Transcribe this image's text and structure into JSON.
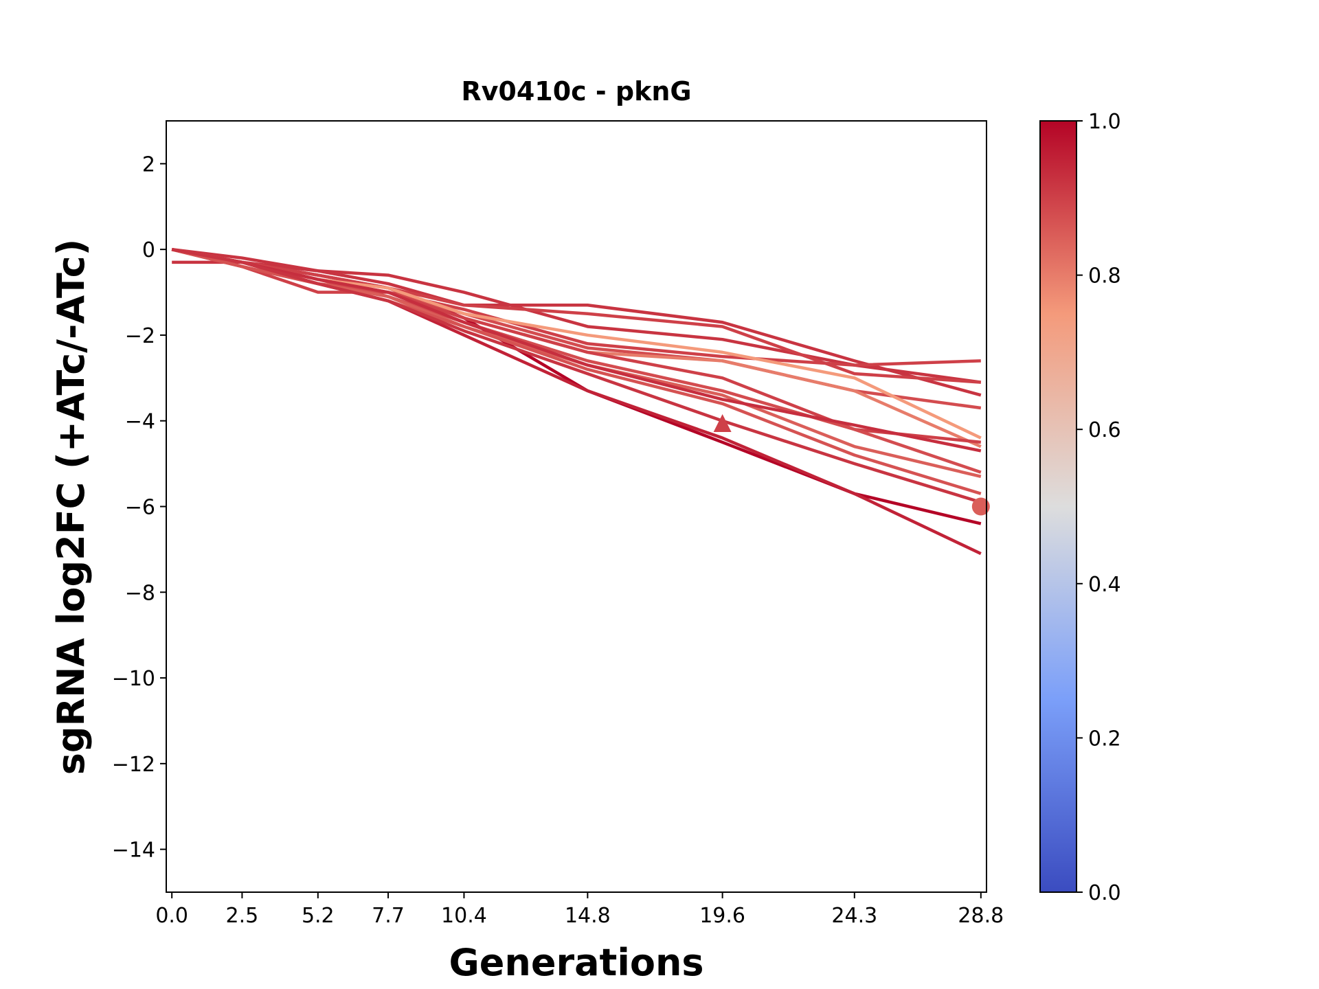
{
  "chart_data": {
    "type": "line",
    "title": "Rv0410c - pknG",
    "xlabel": "Generations",
    "ylabel": "sgRNA log2FC (+ATc/-ATc)",
    "x": [
      0.0,
      2.5,
      5.2,
      7.7,
      10.4,
      14.8,
      19.6,
      24.3,
      28.8
    ],
    "x_tick_labels": [
      "0.0",
      "2.5",
      "5.2",
      "7.7",
      "10.4",
      "14.8",
      "19.6",
      "24.3",
      "28.8"
    ],
    "xlim": [
      -0.2,
      29.0
    ],
    "ylim": [
      -15,
      3
    ],
    "y_ticks": [
      2,
      0,
      -2,
      -4,
      -6,
      -8,
      -10,
      -12,
      -14
    ],
    "y_tick_labels": [
      "2",
      "0",
      "−2",
      "−4",
      "−6",
      "−8",
      "−10",
      "−12",
      "−14"
    ],
    "grid": false,
    "colormap": "coolwarm",
    "colorbar": {
      "range": [
        0.0,
        1.0
      ],
      "tick_labels": [
        "0.0",
        "0.2",
        "0.4",
        "0.6",
        "0.8",
        "1.0"
      ],
      "ticks": [
        0,
        0.2,
        0.4,
        0.6,
        0.8,
        1.0
      ]
    },
    "series": [
      {
        "color_value": 1.0,
        "values": [
          0,
          -0.3,
          -0.6,
          -0.9,
          -1.6,
          -3.3,
          -4.5,
          -5.7,
          -6.4
        ]
      },
      {
        "color_value": 0.95,
        "values": [
          0,
          -0.4,
          -0.8,
          -1.2,
          -2.0,
          -3.3,
          -4.4,
          -5.7,
          -7.1
        ]
      },
      {
        "color_value": 0.92,
        "values": [
          -0.3,
          -0.3,
          -0.5,
          -0.6,
          -1.0,
          -1.8,
          -2.1,
          -2.7,
          -3.1
        ]
      },
      {
        "color_value": 0.92,
        "values": [
          0,
          -0.2,
          -0.5,
          -0.8,
          -1.3,
          -1.3,
          -1.7,
          -2.6,
          -3.4
        ]
      },
      {
        "color_value": 0.9,
        "values": [
          0,
          -0.3,
          -0.6,
          -0.9,
          -1.3,
          -1.5,
          -1.8,
          -2.9,
          -3.1
        ]
      },
      {
        "color_value": 0.9,
        "values": [
          0,
          -0.3,
          -0.7,
          -1.0,
          -1.4,
          -2.2,
          -2.5,
          -2.7,
          -2.6
        ]
      },
      {
        "color_value": 0.88,
        "values": [
          0,
          -0.3,
          -0.8,
          -1.0,
          -1.5,
          -2.3,
          -2.6,
          -3.3,
          -3.7
        ]
      },
      {
        "color_value": 0.75,
        "values": [
          0,
          -0.3,
          -0.7,
          -0.9,
          -1.5,
          -2.0,
          -2.4,
          -3.0,
          -4.4
        ]
      },
      {
        "color_value": 0.8,
        "values": [
          0,
          -0.3,
          -0.7,
          -1.0,
          -1.6,
          -2.4,
          -2.6,
          -3.3,
          -4.6
        ]
      },
      {
        "color_value": 0.9,
        "values": [
          0,
          -0.4,
          -1.0,
          -1.0,
          -1.6,
          -2.4,
          -3.0,
          -4.2,
          -4.5
        ]
      },
      {
        "color_value": 0.88,
        "values": [
          0,
          -0.3,
          -0.7,
          -1.1,
          -1.7,
          -2.6,
          -3.3,
          -4.2,
          -5.2
        ]
      },
      {
        "color_value": 0.85,
        "values": [
          0,
          -0.4,
          -0.8,
          -1.1,
          -1.8,
          -2.7,
          -3.4,
          -4.6,
          -5.3
        ]
      },
      {
        "color_value": 0.87,
        "values": [
          0,
          -0.4,
          -0.8,
          -1.2,
          -1.8,
          -2.8,
          -3.6,
          -4.8,
          -5.7
        ]
      },
      {
        "color_value": 0.93,
        "values": [
          0,
          -0.3,
          -0.7,
          -1.0,
          -1.7,
          -2.7,
          -3.5,
          -4.1,
          -4.7
        ]
      },
      {
        "color_value": 0.92,
        "values": [
          0,
          -0.3,
          -0.8,
          -1.2,
          -1.9,
          -2.9,
          -4.0,
          -5.0,
          -5.9
        ]
      }
    ],
    "markers": [
      {
        "shape": "triangle",
        "x": 19.6,
        "y": -4.1,
        "color_value": 0.9
      },
      {
        "shape": "circle",
        "x": 28.8,
        "y": -6.0,
        "color_value": 0.85
      }
    ]
  }
}
